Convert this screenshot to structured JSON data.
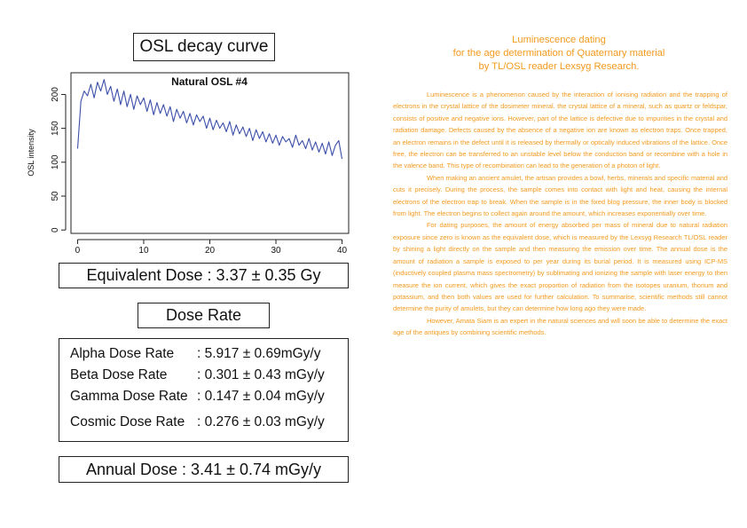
{
  "left": {
    "chart_heading": "OSL decay curve",
    "equivalent_dose": "Equivalent Dose : 3.37 ± 0.35 Gy",
    "dose_rate_heading": "Dose Rate",
    "dose_rates": [
      {
        "label": "Alpha Dose Rate",
        "value": ": 5.917 ± 0.69mGy/y"
      },
      {
        "label": "Beta Dose Rate",
        "value": ": 0.301 ± 0.43 mGy/y"
      },
      {
        "label": "Gamma Dose Rate",
        "value": ": 0.147 ± 0.04 mGy/y"
      },
      {
        "label": "Cosmic Dose Rate",
        "value": ": 0.276 ± 0.03 mGy/y"
      }
    ],
    "annual_dose": "Annual Dose : 3.41 ± 0.74 mGy/y"
  },
  "chart_data": {
    "type": "line",
    "title": "Natural OSL #4",
    "xlabel": "",
    "ylabel": "OSL intensity",
    "xlim": [
      -1,
      41
    ],
    "ylim": [
      -5,
      232
    ],
    "xticks": [
      0,
      10,
      20,
      30,
      40
    ],
    "yticks": [
      0,
      50,
      100,
      150,
      200
    ],
    "ytick_labels": [
      "0",
      "50",
      "100",
      "150",
      "200"
    ],
    "grid": false,
    "line_color": "#3b4ea8",
    "series": [
      {
        "x": [
          0,
          0.5,
          1,
          1.5,
          2,
          2.5,
          3,
          3.5,
          4,
          4.5,
          5,
          5.5,
          6,
          6.5,
          7,
          7.5,
          8,
          8.5,
          9,
          9.5,
          10,
          10.5,
          11,
          11.5,
          12,
          12.5,
          13,
          13.5,
          14,
          14.5,
          15,
          15.5,
          16,
          16.5,
          17,
          17.5,
          18,
          18.5,
          19,
          19.5,
          20,
          20.5,
          21,
          21.5,
          22,
          22.5,
          23,
          23.5,
          24,
          24.5,
          25,
          25.5,
          26,
          26.5,
          27,
          27.5,
          28,
          28.5,
          29,
          29.5,
          30,
          30.5,
          31,
          31.5,
          32,
          32.5,
          33,
          33.5,
          34,
          34.5,
          35,
          35.5,
          36,
          36.5,
          37,
          37.5,
          38,
          38.5,
          39,
          39.5,
          40
        ],
        "y": [
          120,
          190,
          205,
          198,
          215,
          195,
          218,
          205,
          222,
          200,
          212,
          190,
          208,
          185,
          205,
          182,
          200,
          178,
          198,
          185,
          195,
          175,
          192,
          170,
          188,
          172,
          185,
          168,
          182,
          160,
          178,
          165,
          175,
          158,
          172,
          155,
          170,
          160,
          168,
          150,
          165,
          148,
          162,
          150,
          158,
          145,
          160,
          140,
          155,
          142,
          152,
          138,
          150,
          132,
          148,
          135,
          145,
          130,
          142,
          128,
          140,
          125,
          138,
          130,
          135,
          122,
          140,
          125,
          132,
          120,
          135,
          118,
          130,
          115,
          128,
          112,
          130,
          110,
          125,
          132,
          105
        ]
      }
    ]
  },
  "right": {
    "title_lines": [
      "Luminescence dating",
      "for the age determination of Quaternary material",
      "by TL/OSL reader Lexsyg Research."
    ],
    "paragraphs": [
      "Luminescence is a phenomenon caused by the interaction of ionising radiation and the trapping of electrons in the crystal lattice of the dosimeter mineral. the crystal lattice of a mineral, such as quartz or feldspar, consists of positive and negative ions. However, part of the lattice is defective due to impurities in the crystal and radiation damage. Defects caused by the absence of a negative ion are known as electron traps. Once trapped, an electron remains in the defect until it is released by thermally or optically induced vibrations of the lattice. Once free, the electron can be transferred to an unstable level below the conduction band or recombine with a hole in the valence band. This type of recombination can lead to the generation of a photon of light.",
      "When making an ancient amulet, the artisan provides a bowl, herbs, minerals and specific material and cuts it precisely. During the process, the sample comes into contact with light and heat, causing the internal electrons of the electron trap to break. When the sample is in the fixed blog pressure, the inner body is blocked from light. The electron begins to collect again around the amount, which increases exponentially over time.",
      "For dating purposes, the amount of energy absorbed per mass of mineral due to natural radiation exposure since zero is known as the equivalent dose, which is measured by the Lexsyg Research TL/OSL reader by shining a light directly on the sample and then measuring the emission over time. The annual dose is the amount of radiation a sample is exposed to per year during its burial period. It is measured using ICP-MS (inductively coupled plasma mass spectrometry) by sublimating and ionizing the sample with laser energy to then measure the ion current, which gives the exact proportion of radiation from the isotopes uranium, thorium and potassium, and then both values are used for further calculation. To summarise, scientific methods still cannot determine the purity of amulets, but they can determine how long ago they were made.",
      "However, Amata Siam is an expert in the natural sciences and will soon be able to determine the exact age of the antiques by combining scientific methods."
    ]
  }
}
